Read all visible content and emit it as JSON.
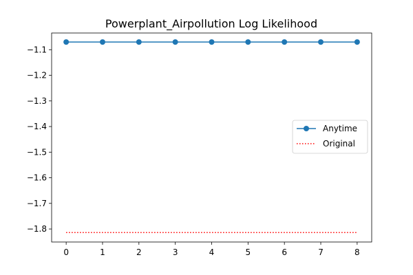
{
  "chart_data": {
    "type": "line",
    "title": "Powerplant_Airpollution Log Likelihood",
    "xlabel": "",
    "ylabel": "",
    "x": [
      0,
      1,
      2,
      3,
      4,
      5,
      6,
      7,
      8
    ],
    "xlim": [
      -0.4,
      8.4
    ],
    "ylim": [
      -1.8508,
      -1.0348
    ],
    "x_ticks": [
      0,
      1,
      2,
      3,
      4,
      5,
      6,
      7,
      8
    ],
    "y_ticks": [
      -1.1,
      -1.2,
      -1.3,
      -1.4,
      -1.5,
      -1.6,
      -1.7,
      -1.8
    ],
    "y_tick_labels": [
      "−1.1",
      "−1.2",
      "−1.3",
      "−1.4",
      "−1.5",
      "−1.6",
      "−1.7",
      "−1.8"
    ],
    "grid": false,
    "legend_position": "center-right",
    "series": [
      {
        "name": "Anytime",
        "values": [
          -1.07,
          -1.07,
          -1.07,
          -1.07,
          -1.07,
          -1.07,
          -1.07,
          -1.07,
          -1.07
        ],
        "color": "#1f77b4",
        "line_style": "solid",
        "marker": "circle"
      },
      {
        "name": "Original",
        "values": [
          -1.814,
          -1.814,
          -1.814,
          -1.814,
          -1.814,
          -1.814,
          -1.814,
          -1.814,
          -1.814
        ],
        "color": "#ff0000",
        "line_style": "dotted",
        "marker": "none"
      }
    ]
  }
}
